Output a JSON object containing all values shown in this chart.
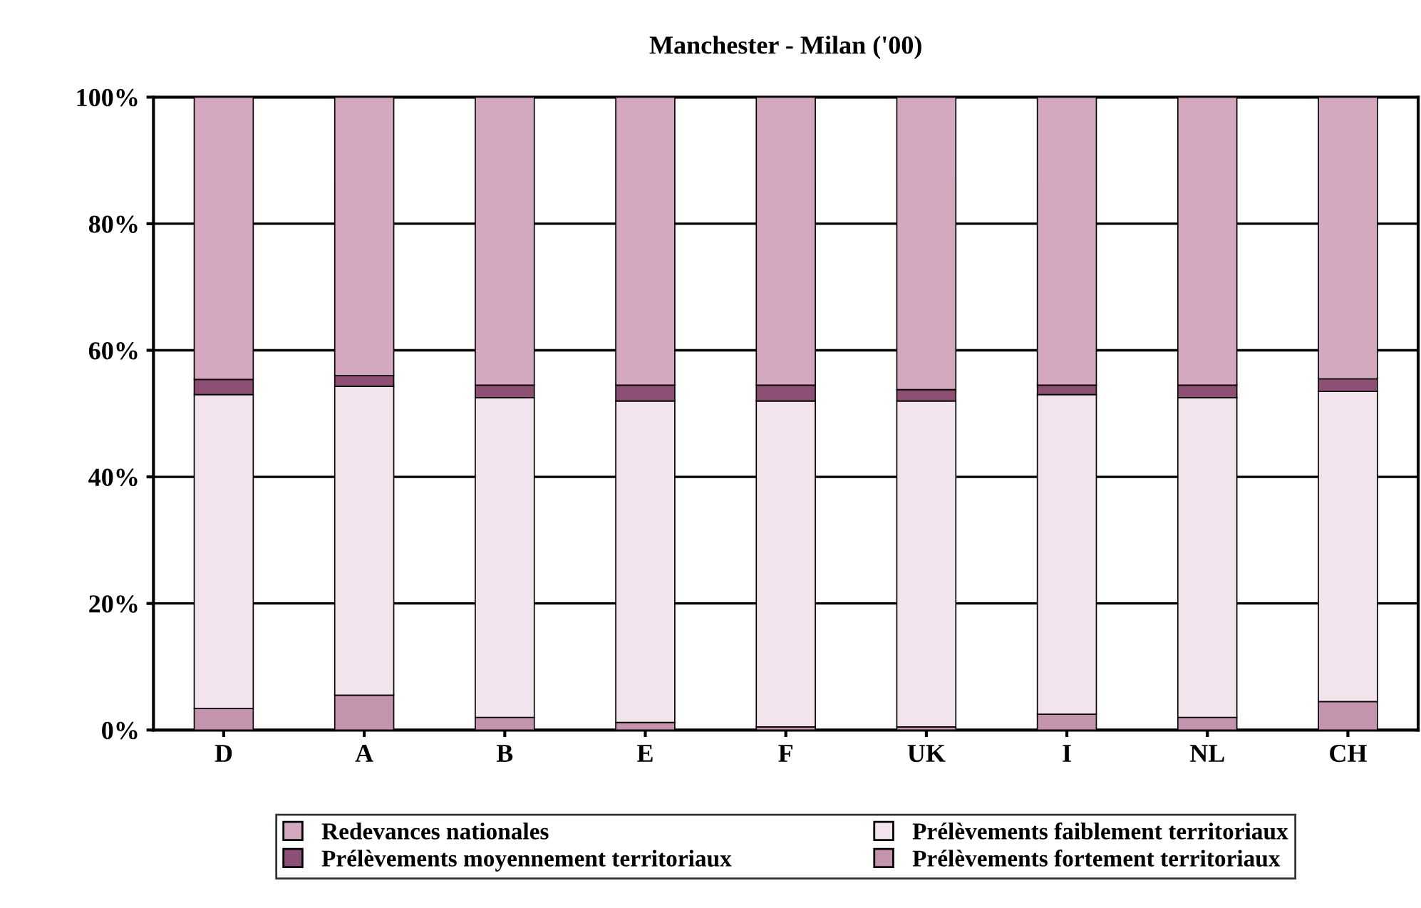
{
  "chart_data": {
    "type": "bar",
    "stacked": true,
    "title": "Manchester - Milan ('00)",
    "categories": [
      "D",
      "A",
      "B",
      "E",
      "F",
      "UK",
      "I",
      "NL",
      "CH"
    ],
    "series": [
      {
        "name": "Prélèvements fortement territoriaux",
        "color": "#c493ad",
        "values": [
          3.4,
          5.5,
          2,
          1.2,
          0.5,
          0.5,
          2.5,
          2,
          4.5
        ]
      },
      {
        "name": "Prélèvements faiblement territoriaux",
        "color": "#f3e3ec",
        "values": [
          49.6,
          48.8,
          50.5,
          50.8,
          51.5,
          51.5,
          50.5,
          50.5,
          49
        ]
      },
      {
        "name": "Prélèvements moyennement territoriaux",
        "color": "#8e4f75",
        "values": [
          2.4,
          1.7,
          2,
          2.5,
          2.5,
          1.8,
          1.5,
          2,
          2
        ]
      },
      {
        "name": "Redevances nationales",
        "color": "#d4a8be",
        "values": [
          44.6,
          44,
          45.5,
          45.5,
          45.5,
          46.2,
          45.5,
          45.5,
          44.5
        ]
      }
    ],
    "ylim": [
      0,
      100
    ],
    "yticks": [
      {
        "value": 0,
        "label": "0%"
      },
      {
        "value": 20,
        "label": "20%"
      },
      {
        "value": 40,
        "label": "40%"
      },
      {
        "value": 60,
        "label": "60%"
      },
      {
        "value": 80,
        "label": "80%"
      },
      {
        "value": 100,
        "label": "100%"
      }
    ],
    "grid": "y",
    "legend": "bottom"
  }
}
